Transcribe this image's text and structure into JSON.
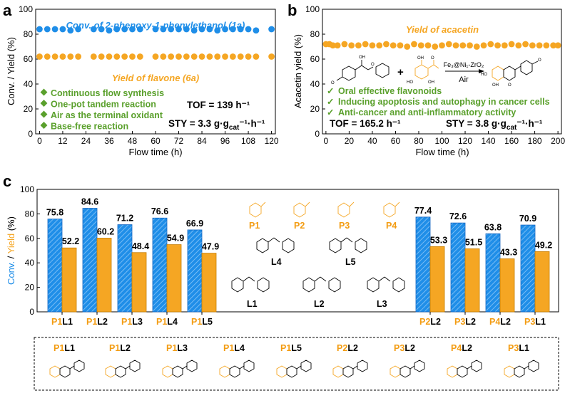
{
  "panels": {
    "a": "a",
    "b": "b",
    "c": "c"
  },
  "chart_data": [
    {
      "type": "scatter",
      "panel": "a",
      "xlabel": "Flow time (h)",
      "ylabel": "Conv. / Yield (%)",
      "xlim": [
        -2,
        122
      ],
      "ylim": [
        0,
        100
      ],
      "xticks": [
        0,
        12,
        24,
        36,
        48,
        60,
        72,
        84,
        96,
        108,
        120
      ],
      "yticks": [
        0,
        20,
        40,
        60,
        80,
        100
      ],
      "series": [
        {
          "name": "Conv. of 2-phenoxy-1-phenylethanol (1a)",
          "color": "#1f8ee8",
          "x": [
            0,
            4,
            8,
            12,
            16,
            20,
            28,
            32,
            36,
            40,
            44,
            48,
            52,
            60,
            64,
            68,
            72,
            76,
            80,
            84,
            88,
            92,
            96,
            100,
            104,
            108,
            112,
            120
          ],
          "y": [
            84,
            84,
            84,
            84,
            83,
            84,
            84,
            84,
            83,
            84,
            84,
            84,
            84,
            84,
            84,
            84,
            84,
            84,
            83,
            84,
            84,
            83,
            84,
            84,
            84,
            84,
            83,
            84
          ]
        },
        {
          "name": "Yield of flavone (6a)",
          "color": "#f5a623",
          "x": [
            0,
            4,
            8,
            12,
            16,
            20,
            28,
            32,
            36,
            40,
            44,
            48,
            52,
            60,
            64,
            68,
            72,
            76,
            80,
            84,
            88,
            92,
            96,
            100,
            104,
            108,
            112,
            120
          ],
          "y": [
            62,
            62,
            62,
            62,
            62,
            62,
            62,
            62,
            62,
            62,
            62,
            62,
            62,
            62,
            62,
            62,
            62,
            62,
            62,
            62,
            62,
            62,
            62,
            62,
            62,
            62,
            62,
            62
          ]
        }
      ],
      "titles": {
        "conv": "Conv. of 2-phenoxy-1-phenylethanol (1a)",
        "yield": "Yield of flavone (6a)"
      },
      "features": [
        "Continuous flow synthesis",
        "One-pot tandem reaction",
        "Air as the terminal oxidant",
        "Base-free reaction"
      ],
      "tof": "TOF = 139 h⁻¹",
      "sty": "STY = 3.3 g·g",
      "sty_sub": "cat",
      "sty_tail": "⁻¹·h⁻¹"
    },
    {
      "type": "scatter",
      "panel": "b",
      "xlabel": "Flow time (h)",
      "ylabel": "Acacetin yield (%)",
      "xlim": [
        -3,
        203
      ],
      "ylim": [
        0,
        100
      ],
      "xticks": [
        0,
        20,
        40,
        60,
        80,
        100,
        120,
        140,
        160,
        180,
        200
      ],
      "yticks": [
        0,
        20,
        40,
        60,
        80,
        100
      ],
      "series": [
        {
          "name": "Yield of acacetin",
          "color": "#f5a623",
          "x": [
            0,
            3,
            6,
            10,
            16,
            22,
            28,
            34,
            40,
            46,
            52,
            58,
            64,
            70,
            76,
            82,
            88,
            94,
            100,
            106,
            112,
            118,
            124,
            130,
            136,
            142,
            148,
            154,
            160,
            166,
            172,
            178,
            184,
            190,
            196,
            200
          ],
          "y": [
            72,
            72,
            71,
            71,
            72,
            71,
            71,
            72,
            71,
            71,
            72,
            71,
            71,
            70,
            72,
            71,
            71,
            70,
            71,
            72,
            71,
            71,
            71,
            70,
            71,
            72,
            71,
            71,
            72,
            71,
            72,
            71,
            71,
            71,
            71,
            71
          ]
        }
      ],
      "title": "Yield of acacetin",
      "features": [
        "Oral effective flavonoids",
        "Inducing apoptosis and autophagy in cancer cells",
        "Anti-cancer and anti-inflammatory activity"
      ],
      "catalyst": "Fe₃@Ni₁-ZrO₂",
      "condition": "Air",
      "plus": "+",
      "tof": "TOF = 165.2 h⁻¹",
      "sty": "STY = 3.8 g·g",
      "sty_sub": "cat",
      "sty_tail": "⁻¹·h⁻¹"
    },
    {
      "type": "bar",
      "panel": "c",
      "ylabel_conv": "Conv.",
      "ylabel_sep": " / ",
      "ylabel_yield": "Yield",
      "ylabel_unit": " (%)",
      "ylim": [
        0,
        100
      ],
      "yticks": [
        0,
        20,
        40,
        60,
        80,
        100
      ],
      "categories": [
        {
          "p": "P1",
          "l": "L1"
        },
        {
          "p": "P1",
          "l": "L2"
        },
        {
          "p": "P1",
          "l": "L3"
        },
        {
          "p": "P1",
          "l": "L4"
        },
        {
          "p": "P1",
          "l": "L5"
        },
        {
          "p": "P2",
          "l": "L2"
        },
        {
          "p": "P3",
          "l": "L2"
        },
        {
          "p": "P4",
          "l": "L2"
        },
        {
          "p": "P3",
          "l": "L1"
        }
      ],
      "series": [
        {
          "name": "Conv.",
          "color": "#1f8ee8",
          "values": [
            75.8,
            84.6,
            71.2,
            76.6,
            66.9,
            77.4,
            72.6,
            63.8,
            70.9
          ]
        },
        {
          "name": "Yield",
          "color": "#f5a623",
          "values": [
            52.2,
            60.2,
            48.4,
            54.9,
            47.9,
            53.3,
            51.5,
            43.3,
            49.2
          ]
        }
      ],
      "reactants_p": [
        "P1",
        "P2",
        "P3",
        "P4"
      ],
      "reactants_l": [
        "L1",
        "L2",
        "L3",
        "L4",
        "L5"
      ],
      "product_labels": [
        {
          "p": "P1",
          "l": "L1"
        },
        {
          "p": "P1",
          "l": "L2"
        },
        {
          "p": "P1",
          "l": "L3"
        },
        {
          "p": "P1",
          "l": "L4"
        },
        {
          "p": "P1",
          "l": "L5"
        },
        {
          "p": "P2",
          "l": "L2"
        },
        {
          "p": "P3",
          "l": "L2"
        },
        {
          "p": "P4",
          "l": "L2"
        },
        {
          "p": "P3",
          "l": "L1"
        }
      ]
    }
  ],
  "mol_text": {
    "o": "O",
    "oh": "OH",
    "ho": "HO"
  },
  "colors": {
    "blue": "#1f8ee8",
    "orange": "#f5a623",
    "green": "#5aa02c",
    "label_orange": "#f39c12"
  }
}
